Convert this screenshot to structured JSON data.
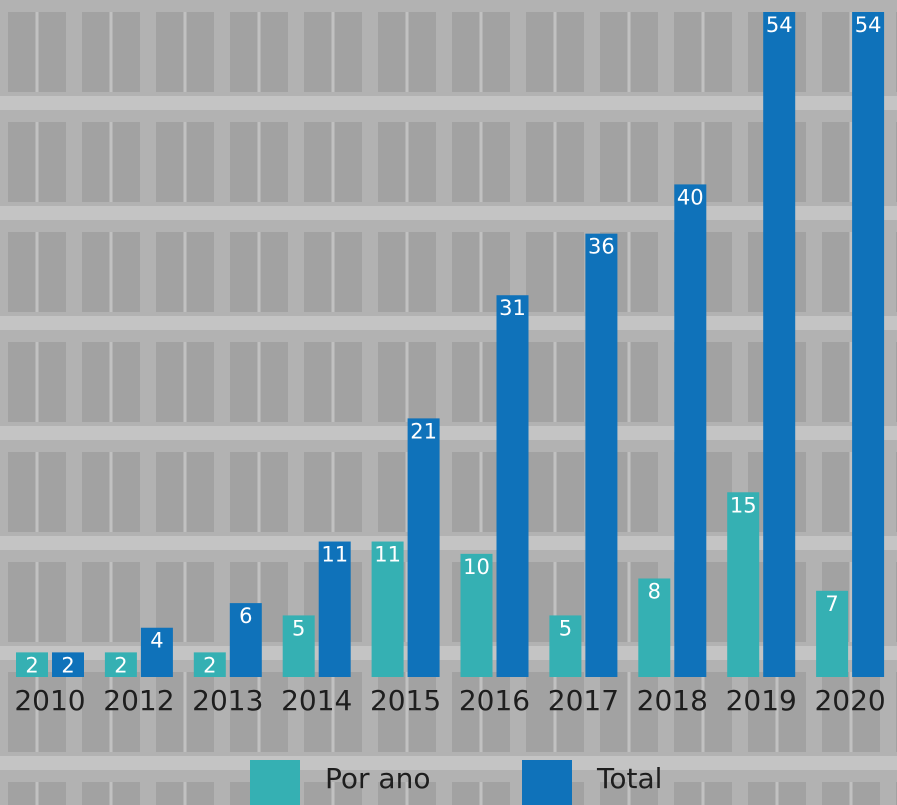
{
  "chart_data": {
    "type": "bar",
    "categories": [
      "2010",
      "2012",
      "2013",
      "2014",
      "2015",
      "2016",
      "2017",
      "2018",
      "2019",
      "2020"
    ],
    "series": [
      {
        "name": "Por ano",
        "color": "#35b0b3",
        "values": [
          2,
          2,
          2,
          5,
          11,
          10,
          5,
          8,
          15,
          7
        ]
      },
      {
        "name": "Total",
        "color": "#0f72ba",
        "values": [
          2,
          4,
          6,
          11,
          21,
          31,
          36,
          40,
          54,
          54
        ]
      }
    ]
  }
}
